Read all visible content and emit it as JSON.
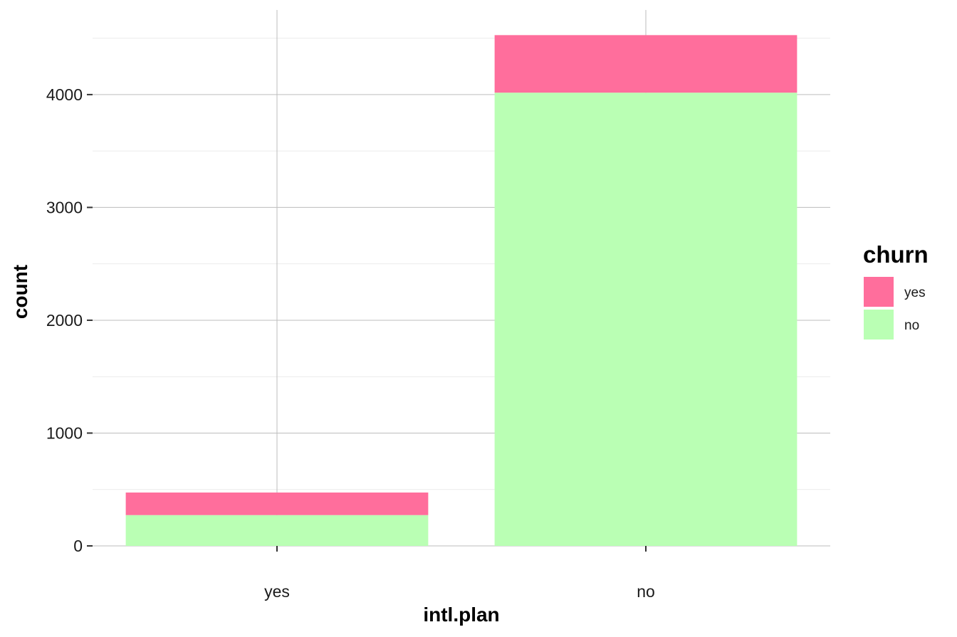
{
  "chart_data": {
    "type": "bar",
    "stacked": true,
    "categories": [
      "yes",
      "no"
    ],
    "series": [
      {
        "name": "yes",
        "color": "#FF6E9C",
        "values": [
          200,
          510
        ]
      },
      {
        "name": "no",
        "color": "#BAFFB4",
        "values": [
          273,
          4017
        ]
      }
    ],
    "xlabel": "intl.plan",
    "ylabel": "count",
    "ylim": [
      0,
      4750
    ],
    "yticks": [
      0,
      1000,
      2000,
      3000,
      4000
    ],
    "ytick_labels": [
      "0",
      "1000",
      "2000",
      "3000",
      "4000"
    ],
    "grid": true,
    "legend": {
      "title": "churn",
      "position": "right",
      "labels": [
        "yes",
        "no"
      ]
    }
  }
}
